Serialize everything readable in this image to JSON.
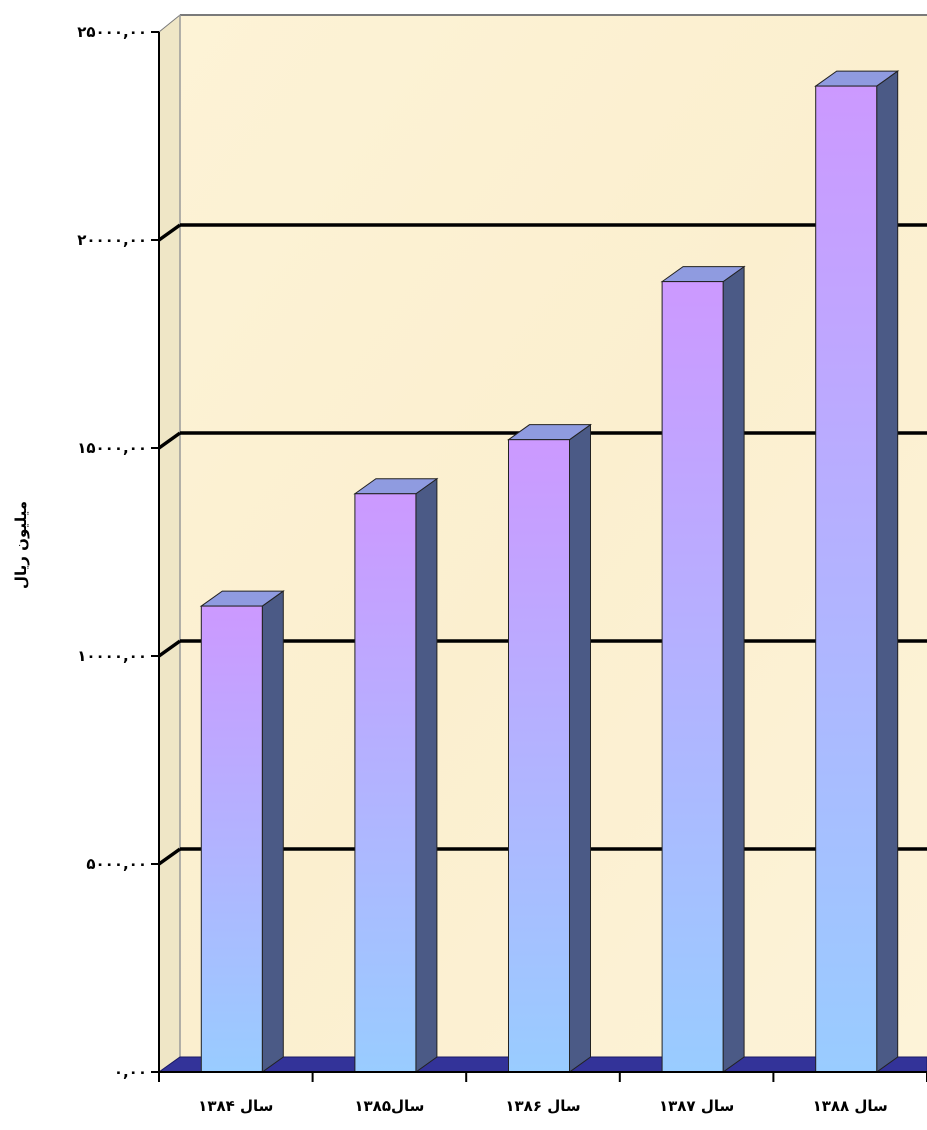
{
  "chart_data": {
    "type": "bar",
    "title": "",
    "xlabel": "",
    "ylabel": "میلیون ریال",
    "categories": [
      "سال ۱۳۸۴",
      "سال۱۳۸۵",
      "سال ۱۳۸۶",
      "سال ۱۳۸۷",
      "سال ۱۳۸۸"
    ],
    "values": [
      11200,
      13900,
      15200,
      19000,
      23700
    ],
    "ylim": [
      0,
      25000
    ],
    "yticks": [
      0,
      5000,
      10000,
      15000,
      20000,
      25000
    ],
    "ytick_labels": [
      "۰,۰۰",
      "۵۰۰۰,۰۰",
      "۱۰۰۰۰,۰۰",
      "۱۵۰۰۰,۰۰",
      "۲۰۰۰۰,۰۰",
      "۲۵۰۰۰,۰۰"
    ],
    "grid": true,
    "three_d": true,
    "colors": {
      "bar_top": "#cc99ff",
      "bar_bottom": "#99ccff",
      "bar_side": "#4b5a86",
      "bar_cap": "#8f9be0",
      "floor": "#333399",
      "wall": "#fcf2d4",
      "gridline": "#000000"
    }
  }
}
